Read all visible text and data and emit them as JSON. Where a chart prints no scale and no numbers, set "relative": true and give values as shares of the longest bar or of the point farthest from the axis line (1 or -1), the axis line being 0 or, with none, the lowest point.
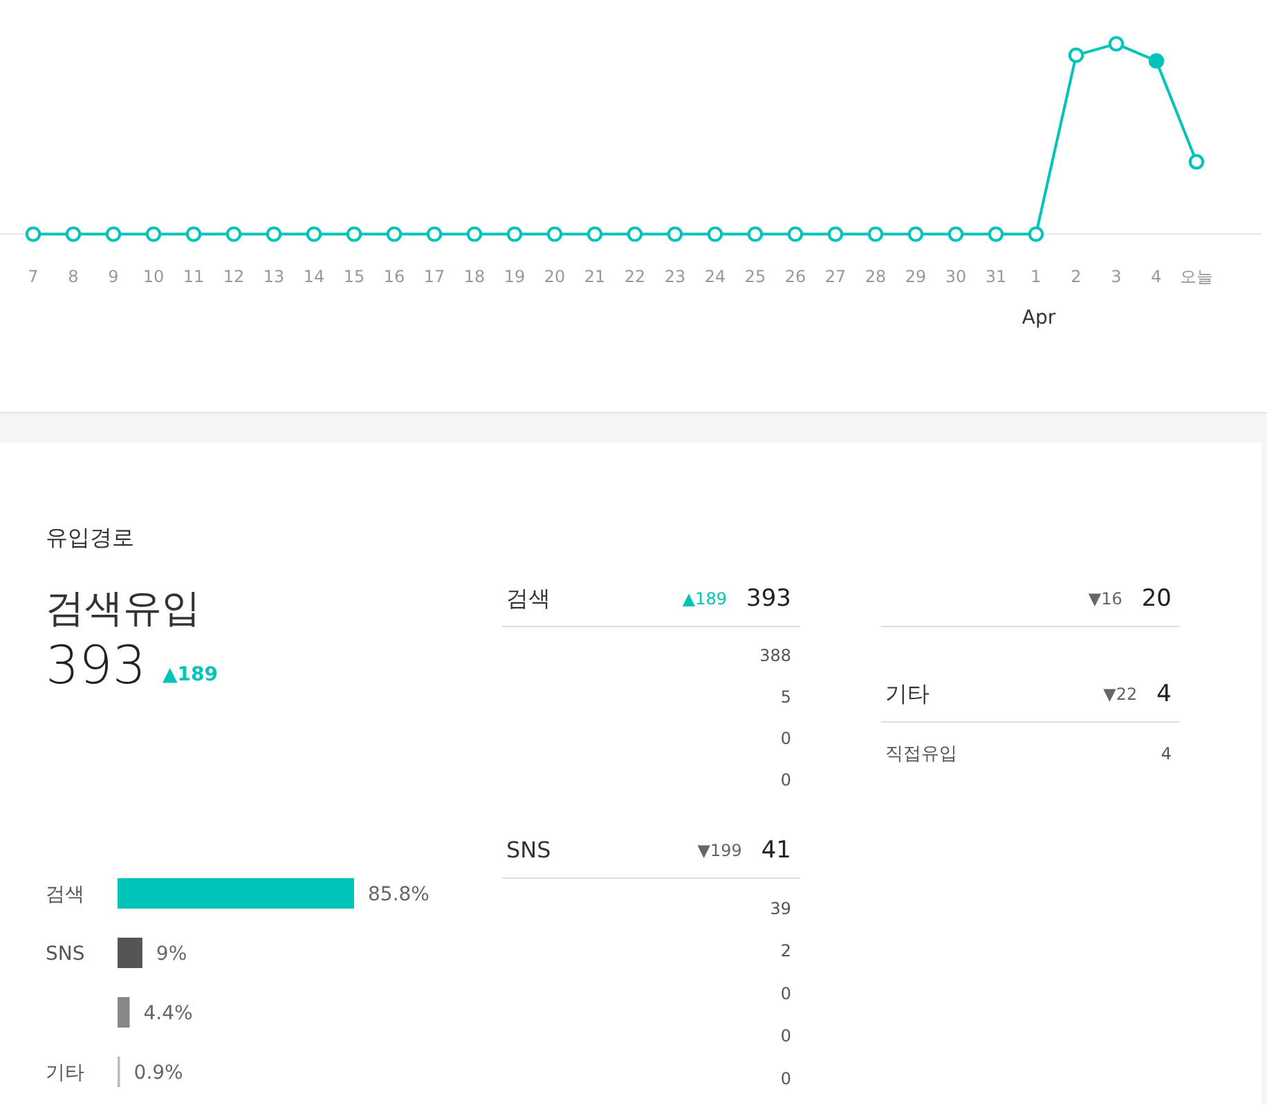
{
  "chart_data": [
    {
      "type": "line",
      "relative": true,
      "categories": [
        "7",
        "8",
        "9",
        "10",
        "11",
        "12",
        "13",
        "14",
        "15",
        "16",
        "17",
        "18",
        "19",
        "20",
        "21",
        "22",
        "23",
        "24",
        "25",
        "26",
        "27",
        "28",
        "29",
        "30",
        "31",
        "1",
        "2",
        "3",
        "4",
        "오늘"
      ],
      "marker": "circle",
      "series": [
        {
          "color": "#00c4b8",
          "values": [
            0,
            0,
            0,
            0,
            0,
            0,
            0,
            0,
            0,
            0,
            0,
            0,
            0,
            0,
            0,
            0,
            0,
            0,
            0,
            0,
            0,
            0,
            0,
            0,
            0,
            0,
            0.94,
            1,
            0.91,
            0.38
          ],
          "colors": [
            "#ffffff",
            "#ffffff",
            "#ffffff",
            "#ffffff",
            "#ffffff",
            "#ffffff",
            "#ffffff",
            "#ffffff",
            "#ffffff",
            "#ffffff",
            "#ffffff",
            "#ffffff",
            "#ffffff",
            "#ffffff",
            "#ffffff",
            "#ffffff",
            "#ffffff",
            "#ffffff",
            "#ffffff",
            "#ffffff",
            "#ffffff",
            "#ffffff",
            "#ffffff",
            "#ffffff",
            "#ffffff",
            "#ffffff",
            "#ffffff",
            "#ffffff",
            "#00c4b8",
            "#ffffff"
          ]
        }
      ],
      "annotations": [
        "Apr"
      ]
    },
    {
      "type": "other",
      "title": "유입경로",
      "subtitle": "검색유입",
      "annotations": [
        "393",
        "▲189"
      ],
      "color": "#00c4b8"
    },
    {
      "type": "bar",
      "orientation": "horizontal",
      "categories": [
        "검색",
        "SNS",
        null,
        "기타"
      ],
      "values": [
        85.8,
        9,
        4.4,
        0.9
      ],
      "colors": [
        "#00c4b8",
        "#555555",
        "#888888",
        "#bbbbbb"
      ],
      "value_labels": [
        "85.8%",
        "9%",
        "4.4%",
        "0.9%"
      ]
    },
    {
      "type": "other",
      "title": "검색",
      "annotations": [
        "▲189",
        "393"
      ],
      "color": "#00c4b8",
      "categories": [
        null,
        null,
        null,
        null
      ],
      "values": [
        388,
        5,
        0,
        0
      ],
      "data_labels": true
    },
    {
      "type": "other",
      "title": "SNS",
      "annotations": [
        "▼199",
        "41"
      ],
      "color": "#666666",
      "categories": [
        null,
        null,
        null,
        null,
        null
      ],
      "values": [
        39,
        2,
        0,
        0,
        0
      ],
      "data_labels": true
    },
    {
      "type": "other",
      "annotations": [
        "▼16",
        "20"
      ],
      "color": "#666666"
    },
    {
      "type": "other",
      "title": "기타",
      "annotations": [
        "▼22",
        "4"
      ],
      "color": "#666666",
      "categories": [
        "직접유입"
      ],
      "values": [
        4
      ],
      "data_labels": true
    }
  ]
}
